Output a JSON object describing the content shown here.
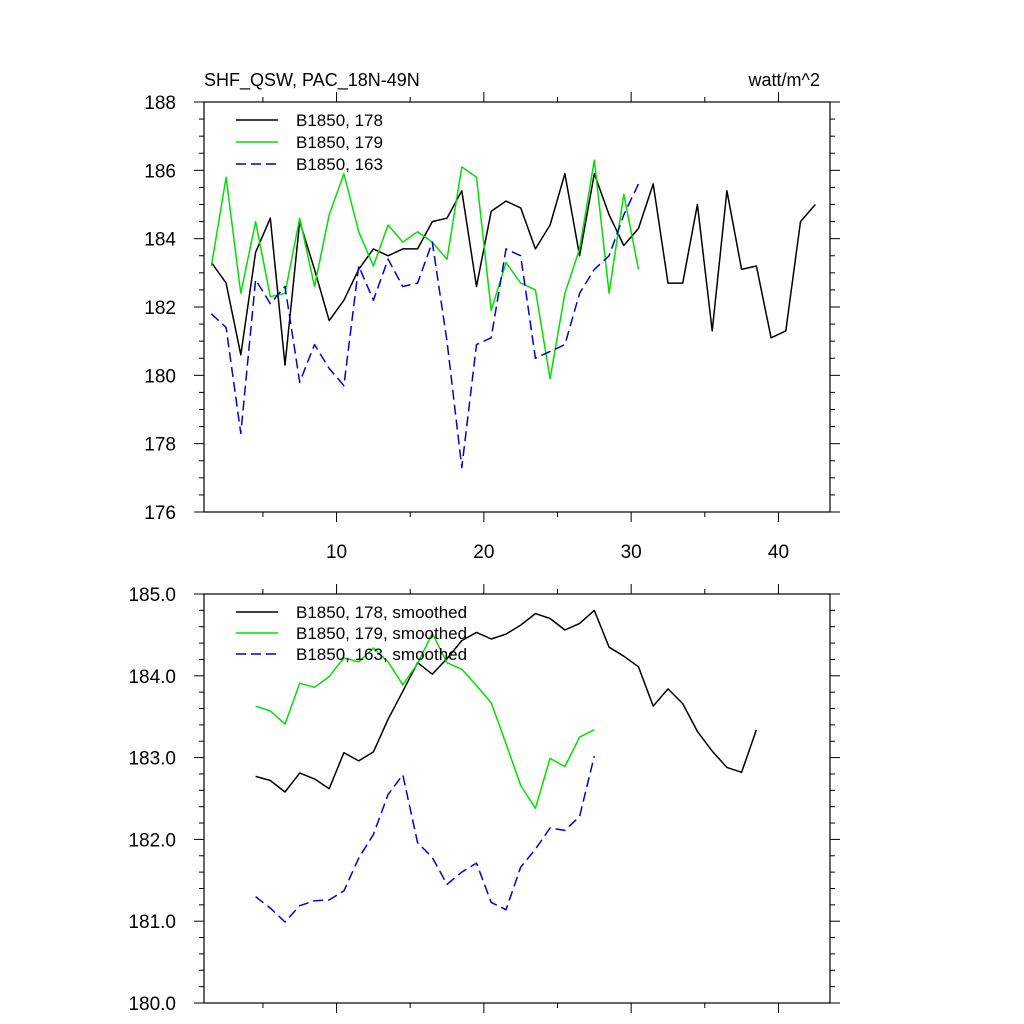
{
  "chart_data": [
    {
      "type": "line",
      "title": "SHF_QSW, PAC_18N-49N",
      "units_label": "watt/m^2",
      "xlabel": "",
      "ylabel": "",
      "xlim": [
        1,
        43.5
      ],
      "ylim": [
        176,
        188
      ],
      "x_ticks_major": [
        10,
        20,
        30,
        40
      ],
      "x_tick_labels": [
        "10",
        "20",
        "30",
        "40"
      ],
      "y_ticks_major": [
        176,
        178,
        180,
        182,
        184,
        186,
        188
      ],
      "y_tick_labels": [
        "176",
        "178",
        "180",
        "182",
        "184",
        "186",
        "188"
      ],
      "x_minor_step": 5,
      "y_minor_step": 0.5,
      "legend_position": "top-left",
      "series": [
        {
          "name": "B1850, 178",
          "color": "#000000",
          "dash": "solid",
          "x_start": 1.5,
          "values": [
            183.3,
            182.7,
            180.6,
            183.6,
            184.6,
            180.3,
            184.5,
            183.1,
            181.6,
            182.2,
            183.1,
            183.7,
            183.5,
            183.7,
            183.7,
            184.5,
            184.6,
            185.4,
            182.6,
            184.8,
            185.1,
            184.9,
            183.7,
            184.4,
            185.9,
            183.5,
            185.9,
            184.7,
            183.8,
            184.3,
            185.6,
            182.7,
            182.7,
            185.0,
            181.3,
            185.4,
            183.1,
            183.2,
            181.1,
            181.3,
            184.5,
            185.0
          ]
        },
        {
          "name": "B1850, 179",
          "color": "#00e000",
          "dash": "solid",
          "x_start": 1.5,
          "values": [
            183.2,
            185.8,
            182.4,
            184.5,
            182.3,
            182.4,
            184.6,
            182.6,
            184.7,
            185.9,
            184.2,
            183.2,
            184.4,
            183.9,
            184.2,
            183.9,
            183.4,
            186.1,
            185.8,
            181.9,
            183.3,
            182.7,
            182.5,
            179.9,
            182.4,
            183.7,
            186.3,
            182.4,
            185.3,
            183.1
          ]
        },
        {
          "name": "B1850, 163",
          "color": "#0000d0",
          "dash": "dashed",
          "x_start": 1.5,
          "values": [
            181.8,
            181.4,
            178.3,
            182.8,
            182.1,
            182.6,
            179.8,
            180.9,
            180.2,
            179.7,
            183.2,
            182.2,
            183.4,
            182.6,
            182.7,
            183.9,
            181.0,
            177.3,
            180.9,
            181.1,
            183.7,
            183.5,
            180.5,
            180.7,
            180.9,
            182.4,
            183.1,
            183.5,
            184.7,
            185.6
          ]
        }
      ]
    },
    {
      "type": "line",
      "title": "",
      "xlabel": "",
      "ylabel": "",
      "xlim": [
        1,
        43.5
      ],
      "ylim": [
        180,
        185
      ],
      "x_ticks_major": [
        10,
        20,
        30,
        40
      ],
      "x_tick_labels": [],
      "y_ticks_major": [
        180,
        181,
        182,
        183,
        184,
        185
      ],
      "y_tick_labels": [
        "180.0",
        "181.0",
        "182.0",
        "183.0",
        "184.0",
        "185.0"
      ],
      "x_minor_step": 5,
      "y_minor_step": 0.2,
      "legend_position": "top-left",
      "series": [
        {
          "name": "B1850, 178, smoothed",
          "color": "#000000",
          "dash": "solid",
          "x_start": 4.5,
          "values": [
            182.77,
            182.72,
            182.58,
            182.81,
            182.74,
            182.62,
            183.06,
            182.96,
            183.07,
            183.47,
            183.81,
            184.16,
            184.02,
            184.21,
            184.43,
            184.53,
            184.45,
            184.51,
            184.62,
            184.76,
            184.7,
            184.56,
            184.64,
            184.8,
            184.35,
            184.24,
            184.11,
            183.63,
            183.84,
            183.66,
            183.32,
            183.08,
            182.88,
            182.82,
            183.34
          ]
        },
        {
          "name": "B1850, 179, smoothed",
          "color": "#00e000",
          "dash": "solid",
          "x_start": 4.5,
          "values": [
            183.63,
            183.57,
            183.41,
            183.91,
            183.86,
            183.99,
            184.22,
            184.17,
            184.34,
            184.17,
            183.89,
            184.15,
            184.52,
            184.16,
            184.08,
            183.88,
            183.67,
            183.17,
            182.66,
            182.38,
            182.99,
            182.89,
            183.25,
            183.34
          ]
        },
        {
          "name": "B1850, 163, smoothed",
          "color": "#0000d0",
          "dash": "dashed",
          "x_start": 4.5,
          "values": [
            181.3,
            181.16,
            180.99,
            181.19,
            181.25,
            181.26,
            181.37,
            181.77,
            182.06,
            182.55,
            182.79,
            181.96,
            181.78,
            181.45,
            181.6,
            181.71,
            181.23,
            181.14,
            181.66,
            181.88,
            182.14,
            182.11,
            182.28,
            183.02
          ]
        }
      ]
    }
  ]
}
